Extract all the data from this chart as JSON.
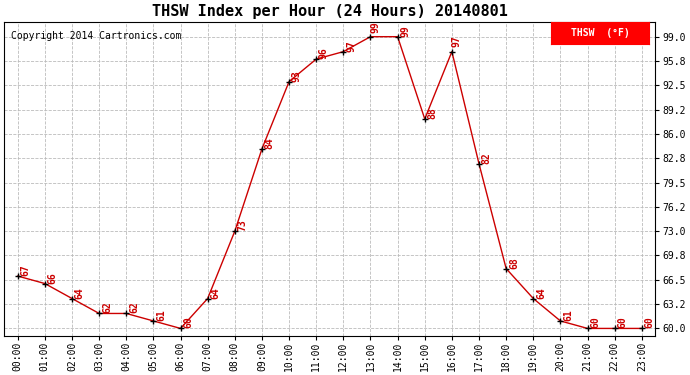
{
  "title": "THSW Index per Hour (24 Hours) 20140801",
  "copyright": "Copyright 2014 Cartronics.com",
  "legend_label": "THSW  (°F)",
  "hours": [
    0,
    1,
    2,
    3,
    4,
    5,
    6,
    7,
    8,
    9,
    10,
    11,
    12,
    13,
    14,
    15,
    16,
    17,
    18,
    19,
    20,
    21,
    22,
    23
  ],
  "values": [
    67,
    66,
    64,
    62,
    62,
    61,
    60,
    64,
    73,
    84,
    93,
    96,
    97,
    99,
    99,
    88,
    97,
    82,
    68,
    64,
    61,
    60,
    60,
    60
  ],
  "x_labels": [
    "00:00",
    "01:00",
    "02:00",
    "03:00",
    "04:00",
    "05:00",
    "06:00",
    "07:00",
    "08:00",
    "09:00",
    "10:00",
    "11:00",
    "12:00",
    "13:00",
    "14:00",
    "15:00",
    "16:00",
    "17:00",
    "18:00",
    "19:00",
    "20:00",
    "21:00",
    "22:00",
    "23:00"
  ],
  "y_ticks": [
    60.0,
    63.2,
    66.5,
    69.8,
    73.0,
    76.2,
    79.5,
    82.8,
    86.0,
    89.2,
    92.5,
    95.8,
    99.0
  ],
  "ylim": [
    59.0,
    101.0
  ],
  "xlim": [
    -0.5,
    23.5
  ],
  "line_color": "#cc0000",
  "marker_color": "#000000",
  "label_color": "#cc0000",
  "grid_color": "#bbbbbb",
  "bg_color": "#ffffff",
  "title_fontsize": 11,
  "copyright_fontsize": 7,
  "label_fontsize": 7,
  "tick_fontsize": 7,
  "figwidth": 6.9,
  "figheight": 3.75,
  "dpi": 100
}
